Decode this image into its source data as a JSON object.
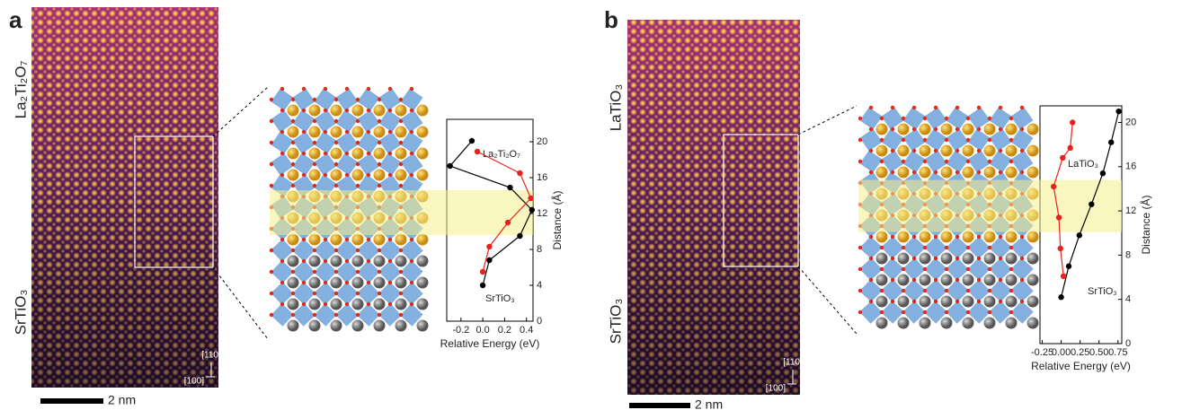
{
  "panels": [
    {
      "label": "a",
      "top_label": "La₂Ti₂O₇",
      "bottom_label": "SrTiO₃",
      "scale_bar": "2 nm",
      "dir_up": "[110]",
      "dir_right": "[100]"
    },
    {
      "label": "b",
      "top_label": "LaTiO₃",
      "bottom_label": "SrTiO₃",
      "scale_bar": "2 nm",
      "dir_up": "[110]",
      "dir_right": "[100]"
    }
  ],
  "chart_data": [
    {
      "type": "line",
      "xlabel": "Relative Energy (eV)",
      "ylabel": "Distance (Å)",
      "xlim": [
        -0.33,
        0.46
      ],
      "xticks": [
        -0.2,
        {
          "value": 0,
          "label": "0.0"
        },
        0.2,
        0.4
      ],
      "ylim": [
        0,
        22.5
      ],
      "yticks": [
        0,
        4,
        8,
        12,
        16,
        20
      ],
      "highlight": {
        "range": [
          9.6,
          14.6
        ],
        "color": "#f6ee8a"
      },
      "annotations": [
        "La₂Ti₂O₇",
        "SrTiO₃"
      ],
      "series": [
        {
          "color": "#000000",
          "x": [
            -0.1,
            -0.3,
            0.25,
            0.45,
            0.34,
            0.06,
            0.0
          ],
          "values": [
            20.1,
            17.3,
            14.9,
            12.4,
            9.5,
            6.8,
            4.0
          ]
        },
        {
          "color": "#e8231d",
          "x": [
            -0.05,
            0.34,
            0.44,
            0.23,
            0.06,
            0.0
          ],
          "values": [
            18.9,
            16.5,
            13.7,
            11.0,
            8.3,
            5.5
          ]
        }
      ]
    },
    {
      "type": "line",
      "xlabel": "Relative Energy (eV)",
      "ylabel": "Distance (Å)",
      "xlim": [
        -0.28,
        0.8
      ],
      "xticks": [
        -0.25,
        {
          "value": 0,
          "label": "0.00"
        },
        {
          "value": 0.25,
          "label": "0.25"
        },
        {
          "value": 0.5,
          "label": "0.50"
        },
        {
          "value": 0.75,
          "label": "0.75"
        }
      ],
      "ylim": [
        0,
        21.5
      ],
      "yticks": [
        0,
        4,
        8,
        12,
        16,
        20
      ],
      "highlight": {
        "range": [
          10.1,
          14.8
        ],
        "color": "#f6ee8a"
      },
      "annotations": [
        "LaTiO₃",
        "SrTiO₃"
      ],
      "series": [
        {
          "color": "#000000",
          "x": [
            0.0,
            0.1,
            0.24,
            0.4,
            0.55,
            0.66,
            0.76
          ],
          "values": [
            4.2,
            7.0,
            9.8,
            12.6,
            15.4,
            18.2,
            21.0
          ]
        },
        {
          "color": "#e8231d",
          "x": [
            0.03,
            -0.01,
            -0.03,
            -0.1,
            0.02,
            0.12,
            0.15
          ],
          "values": [
            6.1,
            8.6,
            11.4,
            14.2,
            16.8,
            17.7,
            20.0
          ]
        }
      ]
    }
  ]
}
